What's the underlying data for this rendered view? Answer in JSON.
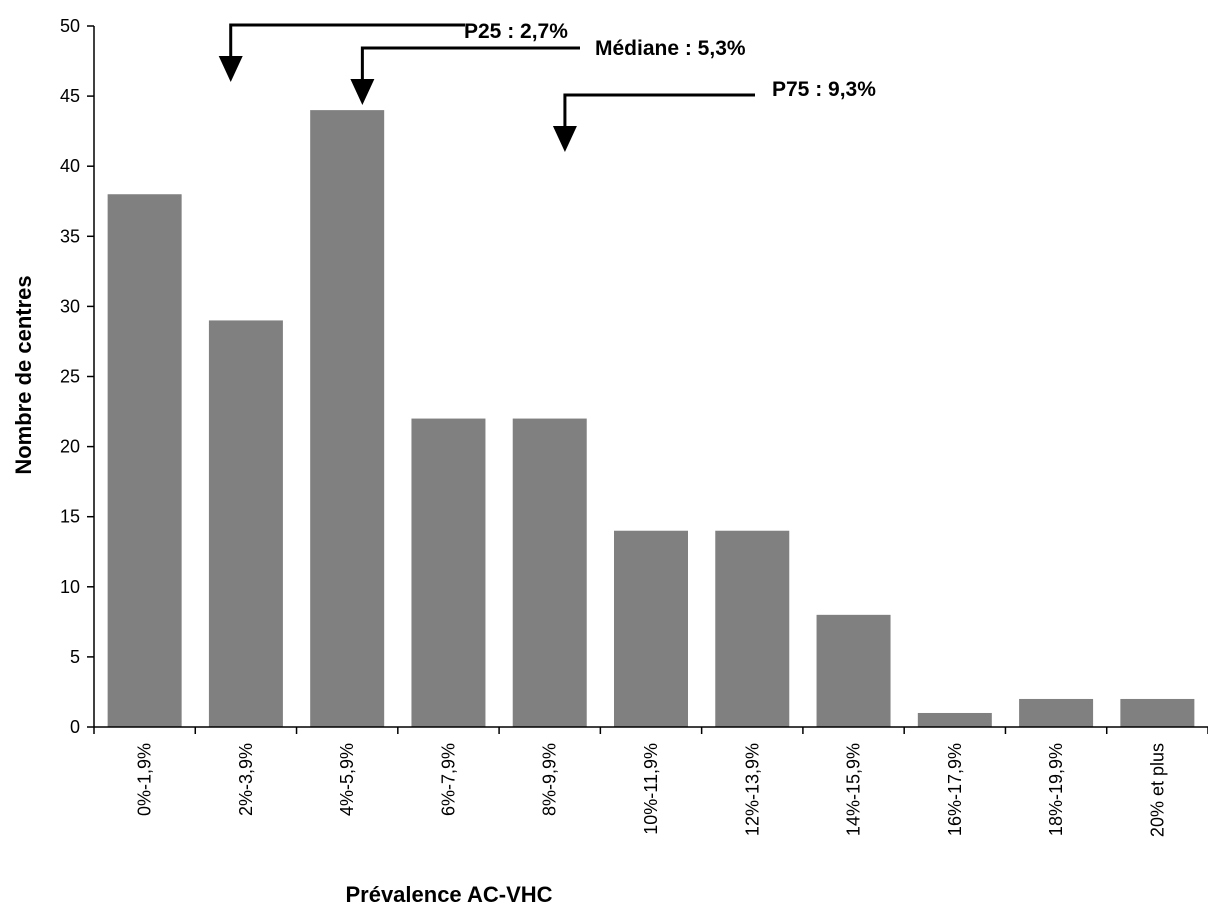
{
  "chart_data": {
    "type": "bar",
    "title": "",
    "xlabel": "Prévalence AC-VHC",
    "ylabel": "Nombre de centres",
    "ylim": [
      0,
      50
    ],
    "yticks": [
      0,
      5,
      10,
      15,
      20,
      25,
      30,
      35,
      40,
      45,
      50
    ],
    "grid": false,
    "legend": "none",
    "bar_color": "#808080",
    "categories": [
      "0%-1,9%",
      "2%-3,9%",
      "4%-5,9%",
      "6%-7,9%",
      "8%-9,9%",
      "10%-11,9%",
      "12%-13,9%",
      "14%-15,9%",
      "16%-17,9%",
      "18%-19,9%",
      "20% et plus"
    ],
    "values": [
      38,
      29,
      44,
      22,
      22,
      14,
      14,
      8,
      1,
      2,
      2
    ],
    "annotations": [
      {
        "text": "P25 : 2,7%",
        "x": 2.7
      },
      {
        "text": "Médiane : 5,3%",
        "x": 5.3
      },
      {
        "text": "P75 : 9,3%",
        "x": 9.3
      }
    ]
  }
}
